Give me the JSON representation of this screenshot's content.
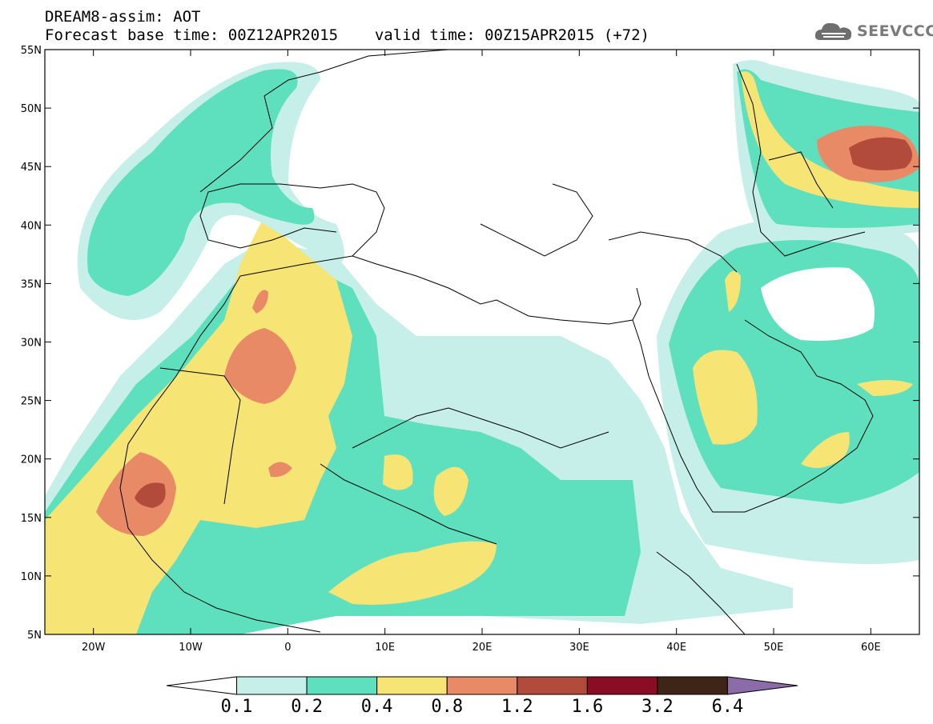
{
  "header": {
    "model_field": "DREAM8-assim: AOT",
    "base_time": "Forecast base time: 00Z12APR2015",
    "valid_time": "valid time: 00Z15APR2015 (+72)"
  },
  "logo": {
    "text": "SEEVCCC",
    "icon": "cloud-icon"
  },
  "map": {
    "lat_labels": [
      "55N",
      "50N",
      "45N",
      "40N",
      "35N",
      "30N",
      "25N",
      "20N",
      "15N",
      "10N",
      "5N"
    ],
    "lon_labels": [
      "20W",
      "10W",
      "0",
      "10E",
      "20E",
      "30E",
      "40E",
      "50E",
      "60E"
    ],
    "lat_range": [
      5,
      55
    ],
    "lon_range": [
      -25,
      65
    ]
  },
  "colorbar": {
    "labels": [
      "0.1",
      "0.2",
      "0.4",
      "0.8",
      "1.2",
      "1.6",
      "3.2",
      "6.4"
    ],
    "colors": [
      "#ffffff",
      "#c6efe9",
      "#5ee0be",
      "#f6e474",
      "#e88a66",
      "#b34b3c",
      "#8b0d25",
      "#3f2418",
      "#8b6ba8"
    ]
  },
  "palette": {
    "aot_0_1": "#c6efe9",
    "aot_0_2": "#5ee0be",
    "aot_0_4": "#f6e474",
    "aot_0_8": "#e88a66",
    "aot_1_2": "#b34b3c",
    "aot_1_6": "#8b0d25"
  }
}
